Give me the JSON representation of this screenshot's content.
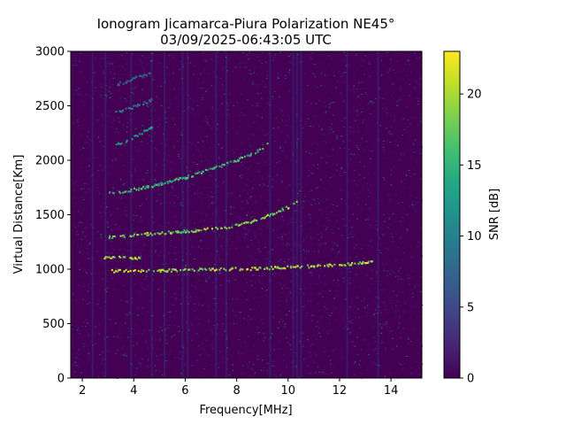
{
  "chart_data": {
    "type": "heatmap",
    "title": "Ionogram Jicamarca-Piura Polarization NE45°",
    "subtitle": "03/09/2025-06:43:05 UTC",
    "xlabel": "Frequency[MHz]",
    "ylabel": "Virtual Distance[Km]",
    "xlim": [
      1.55,
      15.2
    ],
    "ylim": [
      0,
      3000
    ],
    "x_ticks": [
      2,
      4,
      6,
      8,
      10,
      12,
      14
    ],
    "y_ticks": [
      0,
      500,
      1000,
      1500,
      2000,
      2500,
      3000
    ],
    "colorbar": {
      "label": "SNR [dB]",
      "colormap": "viridis",
      "range": [
        0,
        23
      ],
      "ticks": [
        0,
        5,
        10,
        15,
        20
      ]
    },
    "background_color": "#440154",
    "traces": [
      {
        "points": [
          [
            3.0,
            990
          ],
          [
            5.0,
            995
          ],
          [
            7.0,
            1005
          ],
          [
            8.5,
            1012
          ],
          [
            10.0,
            1025
          ],
          [
            11.0,
            1035
          ],
          [
            12.0,
            1048
          ],
          [
            13.0,
            1070
          ],
          [
            13.3,
            1085
          ]
        ],
        "snr": 22
      },
      {
        "points": [
          [
            2.8,
            1110
          ],
          [
            3.5,
            1115
          ],
          [
            4.2,
            1112
          ]
        ],
        "snr": 22
      },
      {
        "points": [
          [
            3.0,
            1300
          ],
          [
            4.5,
            1330
          ],
          [
            6.0,
            1355
          ],
          [
            7.5,
            1390
          ],
          [
            8.5,
            1440
          ],
          [
            9.2,
            1500
          ],
          [
            10.0,
            1580
          ],
          [
            10.3,
            1620
          ]
        ],
        "snr": 20
      },
      {
        "points": [
          [
            3.0,
            1700
          ],
          [
            4.5,
            1760
          ],
          [
            6.0,
            1850
          ],
          [
            7.0,
            1930
          ],
          [
            8.0,
            2010
          ],
          [
            8.8,
            2090
          ],
          [
            9.2,
            2160
          ]
        ],
        "snr": 17
      },
      {
        "points": [
          [
            3.3,
            2150
          ],
          [
            4.0,
            2220
          ],
          [
            4.7,
            2310
          ]
        ],
        "snr": 13
      },
      {
        "points": [
          [
            3.3,
            2450
          ],
          [
            4.0,
            2500
          ],
          [
            4.7,
            2560
          ]
        ],
        "snr": 10
      },
      {
        "points": [
          [
            3.3,
            2700
          ],
          [
            4.0,
            2760
          ],
          [
            4.6,
            2800
          ]
        ],
        "snr": 8
      }
    ],
    "noise_columns_mhz": [
      2.4,
      2.9,
      3.9,
      4.7,
      5.2,
      5.9,
      6.1,
      7.2,
      7.6,
      9.3,
      10.2,
      10.35,
      10.5,
      12.3,
      13.5
    ]
  }
}
